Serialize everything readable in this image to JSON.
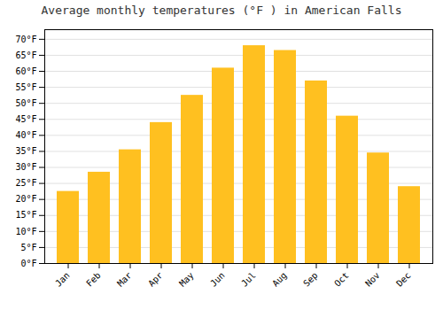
{
  "chart_data": {
    "type": "bar",
    "title": "Average monthly temperatures (°F ) in American Falls",
    "categories": [
      "Jan",
      "Feb",
      "Mar",
      "Apr",
      "May",
      "Jun",
      "Jul",
      "Aug",
      "Sep",
      "Oct",
      "Nov",
      "Dec"
    ],
    "values": [
      22.5,
      28.5,
      35.5,
      44.0,
      52.5,
      61.0,
      68.0,
      66.5,
      57.0,
      46.0,
      34.5,
      24.0
    ],
    "color": "#FFC020",
    "ylim": [
      0,
      73
    ],
    "yticks": [
      {
        "value": 0,
        "label": "0°F"
      },
      {
        "value": 5,
        "label": "5°F"
      },
      {
        "value": 10,
        "label": "10°F"
      },
      {
        "value": 15,
        "label": "15°F"
      },
      {
        "value": 20,
        "label": "20°F"
      },
      {
        "value": 25,
        "label": "25°F"
      },
      {
        "value": 30,
        "label": "30°F"
      },
      {
        "value": 35,
        "label": "35°F"
      },
      {
        "value": 40,
        "label": "40°F"
      },
      {
        "value": 45,
        "label": "45°F"
      },
      {
        "value": 50,
        "label": "50°F"
      },
      {
        "value": 55,
        "label": "55°F"
      },
      {
        "value": 60,
        "label": "60°F"
      },
      {
        "value": 65,
        "label": "65°F"
      },
      {
        "value": 70,
        "label": "70°F"
      }
    ],
    "grid": true
  }
}
